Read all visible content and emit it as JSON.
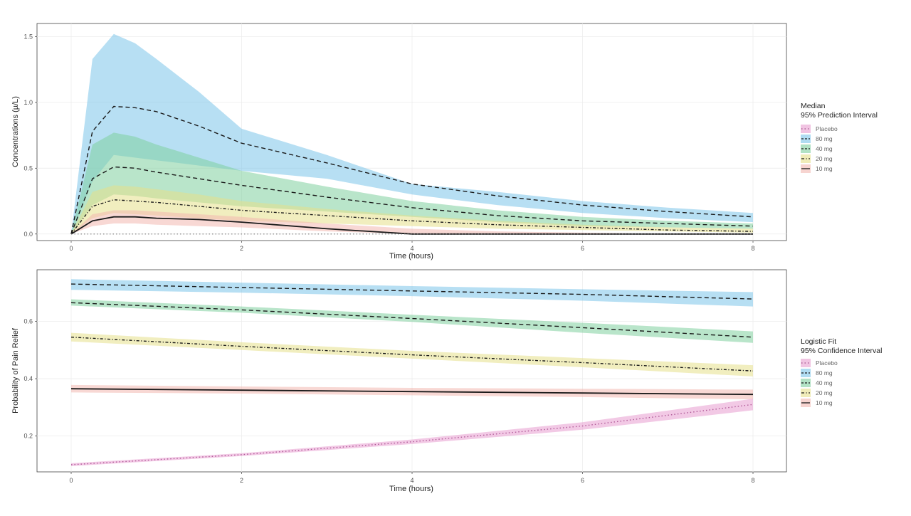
{
  "chart_data": [
    {
      "type": "area",
      "xlabel": "Time (hours)",
      "ylabel": "Concentrations (µ/L)",
      "xlim": [
        0,
        8
      ],
      "ylim": [
        -0.05,
        1.6
      ],
      "xticks": [
        "0",
        "2",
        "4",
        "6",
        "8"
      ],
      "xtick_values": [
        0,
        2,
        4,
        6,
        8
      ],
      "yticks": [
        "0.0",
        "0.5",
        "1.0",
        "1.5"
      ],
      "ytick_values": [
        0,
        0.5,
        1.0,
        1.5
      ],
      "grid": true,
      "legend_position": "right",
      "legend_title": [
        "Median",
        "95% Prediction Interval"
      ],
      "legend_entries": [
        "Placebo",
        "80 mg",
        "40 mg",
        "20 mg",
        "10 mg"
      ],
      "series": [
        {
          "name": "80 mg",
          "color": "#7cc5ea",
          "line_style": "dashed",
          "x": [
            0,
            0.25,
            0.5,
            0.75,
            1,
            1.5,
            2,
            3,
            4,
            5,
            6,
            7,
            8
          ],
          "median": [
            0,
            0.78,
            0.97,
            0.96,
            0.93,
            0.82,
            0.69,
            0.54,
            0.38,
            0.29,
            0.22,
            0.17,
            0.13
          ],
          "lower": [
            0,
            0.4,
            0.6,
            0.58,
            0.56,
            0.52,
            0.48,
            0.42,
            0.3,
            0.22,
            0.16,
            0.12,
            0.09
          ],
          "upper": [
            0,
            1.33,
            1.52,
            1.45,
            1.33,
            1.08,
            0.8,
            0.6,
            0.38,
            0.32,
            0.25,
            0.2,
            0.16
          ]
        },
        {
          "name": "40 mg",
          "color": "#7fcf9f",
          "line_style": "dashed",
          "x": [
            0,
            0.25,
            0.5,
            0.75,
            1,
            1.5,
            2,
            3,
            4,
            5,
            6,
            7,
            8
          ],
          "median": [
            0,
            0.42,
            0.51,
            0.5,
            0.47,
            0.42,
            0.37,
            0.28,
            0.2,
            0.14,
            0.1,
            0.08,
            0.06
          ],
          "lower": [
            0,
            0.22,
            0.3,
            0.29,
            0.27,
            0.24,
            0.21,
            0.17,
            0.13,
            0.09,
            0.06,
            0.05,
            0.04
          ],
          "upper": [
            0,
            0.68,
            0.77,
            0.74,
            0.68,
            0.58,
            0.48,
            0.36,
            0.25,
            0.18,
            0.13,
            0.1,
            0.08
          ]
        },
        {
          "name": "20 mg",
          "color": "#e6e08a",
          "line_style": "dotdash",
          "x": [
            0,
            0.25,
            0.5,
            0.75,
            1,
            1.5,
            2,
            3,
            4,
            5,
            6,
            7,
            8
          ],
          "median": [
            0,
            0.21,
            0.26,
            0.25,
            0.24,
            0.21,
            0.18,
            0.14,
            0.1,
            0.07,
            0.05,
            0.03,
            0.02
          ],
          "lower": [
            0,
            0.12,
            0.16,
            0.15,
            0.14,
            0.12,
            0.1,
            0.08,
            0.06,
            0.04,
            0.03,
            0.02,
            0.01
          ],
          "upper": [
            0,
            0.32,
            0.37,
            0.36,
            0.34,
            0.3,
            0.25,
            0.19,
            0.14,
            0.1,
            0.07,
            0.05,
            0.04
          ]
        },
        {
          "name": "10 mg",
          "color": "#f2b8b0",
          "line_style": "solid",
          "x": [
            0,
            0.25,
            0.5,
            0.75,
            1,
            1.5,
            2,
            3,
            4,
            5,
            6,
            7,
            8
          ],
          "median": [
            0,
            0.1,
            0.13,
            0.13,
            0.12,
            0.11,
            0.09,
            0.04,
            0.0,
            0.0,
            0.0,
            0.0,
            0.0
          ],
          "lower": [
            0,
            0.06,
            0.08,
            0.08,
            0.07,
            0.06,
            0.05,
            0.02,
            0.0,
            0.0,
            0.0,
            0.0,
            0.0
          ],
          "upper": [
            0,
            0.15,
            0.18,
            0.18,
            0.17,
            0.15,
            0.13,
            0.08,
            0.04,
            0.02,
            0.01,
            0.0,
            0.0
          ]
        },
        {
          "name": "Placebo",
          "color": "#e79ccf",
          "line_style": "dotted",
          "x": [
            0,
            8
          ],
          "median": [
            0,
            0
          ],
          "lower": [
            0,
            0
          ],
          "upper": [
            0,
            0
          ]
        }
      ]
    },
    {
      "type": "line",
      "xlabel": "Time (hours)",
      "ylabel": "Probability of Pain Relief",
      "xlim": [
        0,
        8
      ],
      "ylim": [
        0.075,
        0.78
      ],
      "xticks": [
        "0",
        "2",
        "4",
        "6",
        "8"
      ],
      "xtick_values": [
        0,
        2,
        4,
        6,
        8
      ],
      "yticks": [
        "0.2",
        "0.4",
        "0.6"
      ],
      "ytick_values": [
        0.2,
        0.4,
        0.6
      ],
      "grid": true,
      "legend_position": "right",
      "legend_title": [
        "Logistic Fit",
        "95% Confidence Interval"
      ],
      "legend_entries": [
        "Placebo",
        "80 mg",
        "40 mg",
        "20 mg",
        "10 mg"
      ],
      "series": [
        {
          "name": "80 mg",
          "color": "#7cc5ea",
          "line_style": "dashed",
          "x": [
            0,
            2,
            4,
            6,
            8
          ],
          "fit": [
            0.73,
            0.718,
            0.706,
            0.694,
            0.678
          ],
          "lower": [
            0.71,
            0.7,
            0.688,
            0.672,
            0.652
          ],
          "upper": [
            0.747,
            0.735,
            0.723,
            0.712,
            0.702
          ]
        },
        {
          "name": "40 mg",
          "color": "#7fcf9f",
          "line_style": "dashed",
          "x": [
            0,
            2,
            4,
            6,
            8
          ],
          "fit": [
            0.665,
            0.64,
            0.61,
            0.578,
            0.545
          ],
          "lower": [
            0.655,
            0.63,
            0.598,
            0.56,
            0.525
          ],
          "upper": [
            0.677,
            0.652,
            0.623,
            0.595,
            0.565
          ]
        },
        {
          "name": "20 mg",
          "color": "#e6e08a",
          "line_style": "dotdash",
          "x": [
            0,
            2,
            4,
            6,
            8
          ],
          "fit": [
            0.545,
            0.513,
            0.483,
            0.456,
            0.427
          ],
          "lower": [
            0.53,
            0.5,
            0.47,
            0.44,
            0.408
          ],
          "upper": [
            0.56,
            0.527,
            0.497,
            0.472,
            0.447
          ]
        },
        {
          "name": "10 mg",
          "color": "#f2b8b0",
          "line_style": "solid",
          "x": [
            0,
            2,
            4,
            6,
            8
          ],
          "fit": [
            0.365,
            0.36,
            0.355,
            0.35,
            0.345
          ],
          "lower": [
            0.352,
            0.348,
            0.342,
            0.336,
            0.328
          ],
          "upper": [
            0.378,
            0.373,
            0.368,
            0.365,
            0.362
          ]
        },
        {
          "name": "Placebo",
          "color": "#e79ccf",
          "line_style": "dotted",
          "x": [
            0,
            2,
            4,
            6,
            8
          ],
          "fit": [
            0.1,
            0.135,
            0.18,
            0.235,
            0.31
          ],
          "lower": [
            0.095,
            0.13,
            0.172,
            0.222,
            0.29
          ],
          "upper": [
            0.105,
            0.14,
            0.188,
            0.248,
            0.33
          ]
        }
      ]
    }
  ]
}
